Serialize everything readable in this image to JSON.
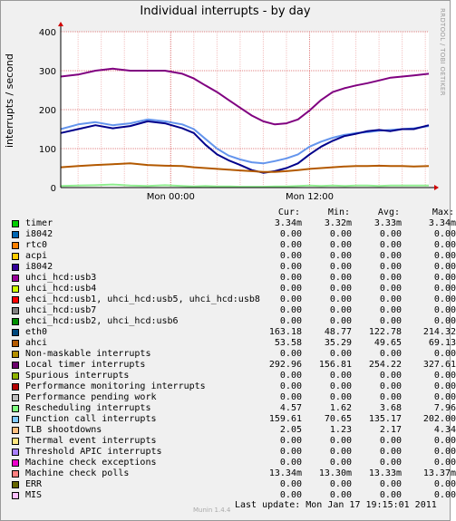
{
  "chart_data": {
    "type": "line",
    "title": "Individual interrupts - by day",
    "ylabel": "interrupts / second",
    "ylim": [
      0,
      400
    ],
    "yticks": [
      0,
      100,
      200,
      300,
      400
    ],
    "xtick_labels": [
      "Mon 00:00",
      "Mon 12:00"
    ],
    "xticks_hours": [
      0,
      12
    ],
    "xlim_hours": [
      -9.5,
      22.3
    ],
    "grid": true,
    "plotted_series": [
      {
        "name": "Local timer interrupts",
        "color": "#800080",
        "x": [
          -9.5,
          -8,
          -6.5,
          -5,
          -3.5,
          -2,
          -0.5,
          1,
          2,
          3,
          4,
          5,
          6,
          7,
          8,
          9,
          10,
          11,
          12,
          13,
          14,
          15,
          16,
          17,
          18,
          19,
          20,
          21,
          22.3
        ],
        "y": [
          285,
          290,
          300,
          305,
          300,
          300,
          300,
          292,
          280,
          262,
          245,
          225,
          205,
          185,
          170,
          162,
          165,
          175,
          198,
          225,
          245,
          255,
          262,
          268,
          275,
          282,
          285,
          288,
          292
        ]
      },
      {
        "name": "Function call interrupts",
        "color": "#6495ed",
        "x": [
          -9.5,
          -8,
          -6.5,
          -5,
          -3.5,
          -2,
          -0.5,
          1,
          2,
          3,
          4,
          5,
          6,
          7,
          8,
          9,
          10,
          11,
          12,
          13,
          14,
          15,
          16,
          17,
          18,
          19,
          20,
          21,
          22.3
        ],
        "y": [
          150,
          162,
          168,
          160,
          165,
          175,
          170,
          162,
          150,
          125,
          100,
          82,
          72,
          65,
          62,
          68,
          75,
          85,
          105,
          118,
          128,
          135,
          140,
          142,
          146,
          148,
          150,
          152,
          158
        ]
      },
      {
        "name": "eth0",
        "color": "#00008b",
        "x": [
          -9.5,
          -8,
          -6.5,
          -5,
          -3.5,
          -2,
          -0.5,
          1,
          2,
          3,
          4,
          5,
          6,
          7,
          8,
          9,
          10,
          11,
          12,
          13,
          14,
          15,
          16,
          17,
          18,
          19,
          20,
          21,
          22.3
        ],
        "y": [
          140,
          150,
          160,
          152,
          158,
          170,
          165,
          152,
          140,
          110,
          85,
          70,
          58,
          45,
          38,
          42,
          50,
          62,
          85,
          105,
          120,
          132,
          138,
          145,
          148,
          145,
          150,
          150,
          160
        ]
      },
      {
        "name": "ahci",
        "color": "#b35900",
        "x": [
          -9.5,
          -8,
          -6.5,
          -5,
          -3.5,
          -2,
          -0.5,
          1,
          2,
          3,
          4,
          5,
          6,
          7,
          8,
          9,
          10,
          11,
          12,
          13,
          14,
          15,
          16,
          17,
          18,
          19,
          20,
          21,
          22.3
        ],
        "y": [
          52,
          55,
          58,
          60,
          62,
          58,
          56,
          55,
          52,
          50,
          48,
          46,
          44,
          42,
          40,
          40,
          42,
          45,
          48,
          50,
          52,
          54,
          55,
          55,
          56,
          55,
          55,
          54,
          55
        ]
      },
      {
        "name": "Rescheduling interrupts",
        "color": "#90ee90",
        "x": [
          -9.5,
          -8,
          -6.5,
          -5,
          -3.5,
          -2,
          -0.5,
          1,
          2,
          3,
          4,
          5,
          6,
          7,
          8,
          9,
          10,
          11,
          12,
          13,
          14,
          15,
          16,
          17,
          18,
          19,
          20,
          21,
          22.3
        ],
        "y": [
          4,
          5,
          6,
          8,
          5,
          4,
          6,
          4,
          3,
          4,
          3,
          3,
          2,
          2,
          2,
          3,
          3,
          4,
          5,
          4,
          5,
          4,
          5,
          5,
          4,
          5,
          5,
          5,
          5
        ]
      }
    ]
  },
  "legend": {
    "headers": [
      "Cur:",
      "Min:",
      "Avg:",
      "Max:"
    ],
    "rows": [
      {
        "label": "timer",
        "color": "#00cc00",
        "cur": "3.34m",
        "min": "3.32m",
        "avg": "3.33m",
        "max": "3.34m"
      },
      {
        "label": "i8042",
        "color": "#0066b3",
        "cur": "0.00",
        "min": "0.00",
        "avg": "0.00",
        "max": "0.00"
      },
      {
        "label": "rtc0",
        "color": "#ff8000",
        "cur": "0.00",
        "min": "0.00",
        "avg": "0.00",
        "max": "0.00"
      },
      {
        "label": "acpi",
        "color": "#ffcc00",
        "cur": "0.00",
        "min": "0.00",
        "avg": "0.00",
        "max": "0.00"
      },
      {
        "label": "i8042",
        "color": "#330099",
        "cur": "0.00",
        "min": "0.00",
        "avg": "0.00",
        "max": "0.00"
      },
      {
        "label": "uhci_hcd:usb3",
        "color": "#990099",
        "cur": "0.00",
        "min": "0.00",
        "avg": "0.00",
        "max": "0.00"
      },
      {
        "label": "uhci_hcd:usb4",
        "color": "#ccff00",
        "cur": "0.00",
        "min": "0.00",
        "avg": "0.00",
        "max": "0.00"
      },
      {
        "label": "ehci_hcd:usb1, uhci_hcd:usb5, uhci_hcd:usb8",
        "color": "#ff0000",
        "cur": "0.00",
        "min": "0.00",
        "avg": "0.00",
        "max": "0.00"
      },
      {
        "label": "uhci_hcd:usb7",
        "color": "#808080",
        "cur": "0.00",
        "min": "0.00",
        "avg": "0.00",
        "max": "0.00"
      },
      {
        "label": "ehci_hcd:usb2, uhci_hcd:usb6",
        "color": "#008f00",
        "cur": "0.00",
        "min": "0.00",
        "avg": "0.00",
        "max": "0.00"
      },
      {
        "label": "eth0",
        "color": "#00487d",
        "cur": "163.18",
        "min": "48.77",
        "avg": "122.78",
        "max": "214.32"
      },
      {
        "label": "ahci",
        "color": "#b35a00",
        "cur": "53.58",
        "min": "35.29",
        "avg": "49.65",
        "max": "69.13"
      },
      {
        "label": "Non-maskable interrupts",
        "color": "#b38f00",
        "cur": "0.00",
        "min": "0.00",
        "avg": "0.00",
        "max": "0.00"
      },
      {
        "label": "Local timer interrupts",
        "color": "#6b006b",
        "cur": "292.96",
        "min": "156.81",
        "avg": "254.22",
        "max": "327.61"
      },
      {
        "label": "Spurious interrupts",
        "color": "#8fb300",
        "cur": "0.00",
        "min": "0.00",
        "avg": "0.00",
        "max": "0.00"
      },
      {
        "label": "Performance monitoring interrupts",
        "color": "#b30000",
        "cur": "0.00",
        "min": "0.00",
        "avg": "0.00",
        "max": "0.00"
      },
      {
        "label": "Performance pending work",
        "color": "#bebebe",
        "cur": "0.00",
        "min": "0.00",
        "avg": "0.00",
        "max": "0.00"
      },
      {
        "label": "Rescheduling interrupts",
        "color": "#80ff80",
        "cur": "4.57",
        "min": "1.62",
        "avg": "3.68",
        "max": "7.96"
      },
      {
        "label": "Function call interrupts",
        "color": "#80c9ff",
        "cur": "159.61",
        "min": "70.65",
        "avg": "135.17",
        "max": "202.00"
      },
      {
        "label": "TLB shootdowns",
        "color": "#ffc080",
        "cur": "2.05",
        "min": "1.23",
        "avg": "2.17",
        "max": "4.34"
      },
      {
        "label": "Thermal event interrupts",
        "color": "#ffe680",
        "cur": "0.00",
        "min": "0.00",
        "avg": "0.00",
        "max": "0.00"
      },
      {
        "label": "Threshold APIC interrupts",
        "color": "#aa80ff",
        "cur": "0.00",
        "min": "0.00",
        "avg": "0.00",
        "max": "0.00"
      },
      {
        "label": "Machine check exceptions",
        "color": "#ee00cc",
        "cur": "0.00",
        "min": "0.00",
        "avg": "0.00",
        "max": "0.00"
      },
      {
        "label": "Machine check polls",
        "color": "#ff8080",
        "cur": "13.34m",
        "min": "13.30m",
        "avg": "13.33m",
        "max": "13.37m"
      },
      {
        "label": "ERR",
        "color": "#666600",
        "cur": "0.00",
        "min": "0.00",
        "avg": "0.00",
        "max": "0.00"
      },
      {
        "label": "MIS",
        "color": "#ffbfff",
        "cur": "0.00",
        "min": "0.00",
        "avg": "0.00",
        "max": "0.00"
      }
    ]
  },
  "footer": {
    "last_update": "Last update:  Mon Jan 17 19:15:01 2011",
    "munin": "Munin 1.4.4"
  },
  "side_text": "RRDTOOL / TOBI OETIKER"
}
